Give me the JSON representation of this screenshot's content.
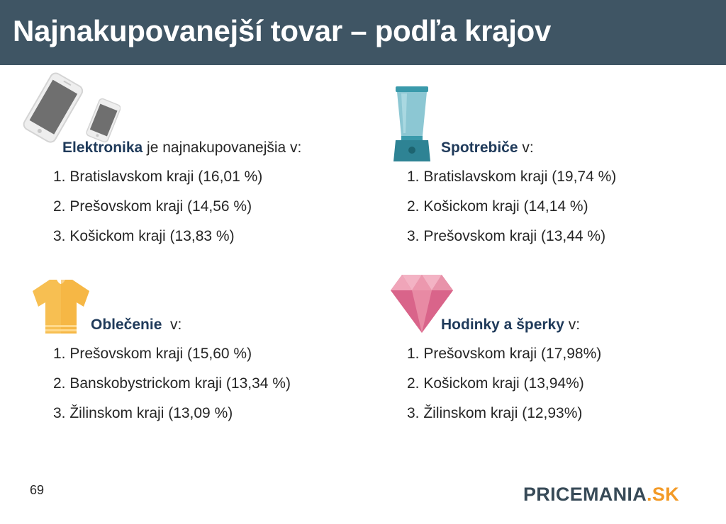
{
  "header": {
    "title": "Najnakupovanejší tovar – podľa krajov"
  },
  "sections": {
    "elektronika": {
      "icon": "smartphone-icon",
      "bold": "Elektronika",
      "rest": " je najnakupovanejšia v:",
      "items": [
        "1. Bratislavskom kraji (16,01 %)",
        "2. Prešovskom kraji (14,56 %)",
        "3. Košickom kraji (13,83 %)"
      ]
    },
    "spotrebice": {
      "icon": "blender-icon",
      "bold": "Spotrebiče",
      "rest": " v:",
      "items": [
        "1. Bratislavskom kraji (19,74 %)",
        "2. Košickom kraji (14,14 %)",
        "3. Prešovskom kraji (13,44 %)"
      ]
    },
    "oblecenie": {
      "icon": "tshirt-icon",
      "bold": "Oblečenie",
      "rest": "  v:",
      "items": [
        "1. Prešovskom kraji (15,60 %)",
        "2. Banskobystrickom kraji (13,34 %)",
        "3. Žilinskom kraji (13,09 %)"
      ]
    },
    "hodinky": {
      "icon": "diamond-icon",
      "bold": "Hodinky a šperky",
      "rest": " v:",
      "items": [
        "1. Prešovskom kraji (17,98%)",
        "2. Košickom kraji (13,94%)",
        "3. Žilinskom kraji (12,93%)"
      ]
    }
  },
  "footer": {
    "page_number": "69",
    "logo_main": "PRICEMANIA",
    "logo_suffix": ".SK"
  },
  "colors": {
    "header_bg": "#3f5564",
    "heading_text": "#1f3a5a",
    "logo_dark": "#374a57",
    "logo_accent": "#f39a26"
  }
}
